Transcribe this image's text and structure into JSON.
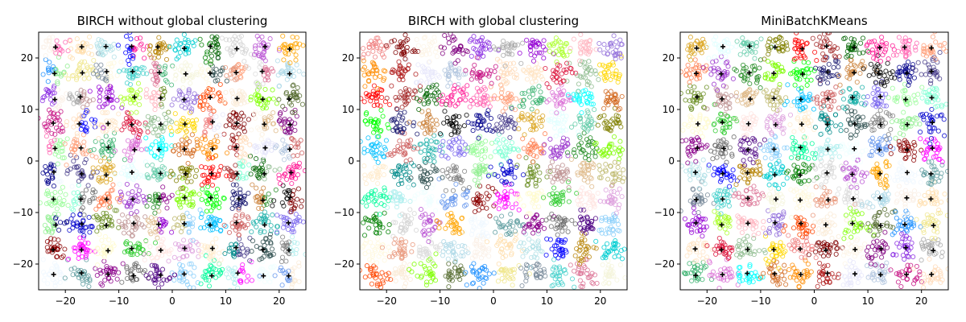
{
  "chart_data": [
    {
      "type": "scatter",
      "title": "BIRCH without global clustering",
      "xlim": [
        -25,
        25
      ],
      "ylim": [
        -25,
        25
      ],
      "xticks": [
        -20,
        -10,
        0,
        10,
        20
      ],
      "yticks": [
        -20,
        -10,
        0,
        10,
        20
      ],
      "grid": false,
      "cluster_centers_1d": [
        -22,
        -17.11,
        -12.22,
        -7.33,
        -2.44,
        2.44,
        7.33,
        12.22,
        17.11,
        22
      ],
      "cluster_std": 1.2,
      "centroid_marker": "+",
      "split_clusters": true
    },
    {
      "type": "scatter",
      "title": "BIRCH with global clustering",
      "xlim": [
        -25,
        25
      ],
      "ylim": [
        -25,
        25
      ],
      "xticks": [
        -20,
        -10,
        0,
        10,
        20
      ],
      "yticks": [
        -20,
        -10,
        0,
        10,
        20
      ],
      "grid": false,
      "cluster_centers_1d": [
        -22,
        -17.11,
        -12.22,
        -7.33,
        -2.44,
        2.44,
        7.33,
        12.22,
        17.11,
        22
      ],
      "cluster_std": 1.2,
      "centroid_marker": "none",
      "split_clusters": false
    },
    {
      "type": "scatter",
      "title": "MiniBatchKMeans",
      "xlim": [
        -25,
        25
      ],
      "ylim": [
        -25,
        25
      ],
      "xticks": [
        -20,
        -10,
        0,
        10,
        20
      ],
      "yticks": [
        -20,
        -10,
        0,
        10,
        20
      ],
      "grid": false,
      "cluster_centers_1d": [
        -22,
        -17.11,
        -12.22,
        -7.33,
        -2.44,
        2.44,
        7.33,
        12.22,
        17.11,
        22
      ],
      "cluster_std": 1.2,
      "centroid_marker": "+",
      "split_clusters": false
    }
  ],
  "colors": [
    "#f0f8ff",
    "#faebd7",
    "#00ffff",
    "#7fffd4",
    "#f0ffff",
    "#f5f5dc",
    "#ffe4c4",
    "#000000",
    "#ffebcd",
    "#0000ff",
    "#8a2be2",
    "#a52a2a",
    "#deb887",
    "#5f9ea0",
    "#7fff00",
    "#d2691e",
    "#ff7f50",
    "#6495ed",
    "#fff8dc",
    "#dc143c",
    "#00008b",
    "#008b8b",
    "#b8860b",
    "#a9a9a9",
    "#006400",
    "#bdb76b",
    "#8b008b",
    "#556b2f",
    "#ff8c00",
    "#9932cc",
    "#8b0000",
    "#e9967a",
    "#8fbc8f",
    "#483d8b",
    "#2f4f4f",
    "#00ced1",
    "#9400d3",
    "#ff1493",
    "#00bfff",
    "#696969",
    "#1e90ff",
    "#b22222",
    "#228b22",
    "#ff00ff",
    "#dcdcdc",
    "#ffd700",
    "#daa520",
    "#808080",
    "#008000",
    "#adff2f",
    "#ff69b4",
    "#cd5c5c",
    "#4b0082",
    "#f0e68c",
    "#e6e6fa",
    "#7cfc00",
    "#fffacd",
    "#add8e6",
    "#f08080",
    "#e0ffff",
    "#90ee90",
    "#d3d3d3",
    "#ffb6c1",
    "#ffa07a",
    "#20b2aa",
    "#87cefa",
    "#778899",
    "#b0c4de",
    "#00ff00",
    "#32cd32",
    "#faf0e6",
    "#800000",
    "#66cdaa",
    "#0000cd",
    "#ba55d3",
    "#9370db",
    "#3cb371",
    "#7b68ee",
    "#00fa9a",
    "#48d1cc",
    "#c71585",
    "#191970",
    "#ffe4e1",
    "#ffdead",
    "#fdf5e6",
    "#808000",
    "#6b8e23",
    "#ffa500",
    "#ff4500",
    "#da70d6",
    "#98fb98",
    "#afeeee",
    "#db7093",
    "#ffdab9",
    "#cd853f",
    "#dda0dd",
    "#b0e0e6",
    "#800080",
    "#ff0000",
    "#bc8f8f"
  ]
}
